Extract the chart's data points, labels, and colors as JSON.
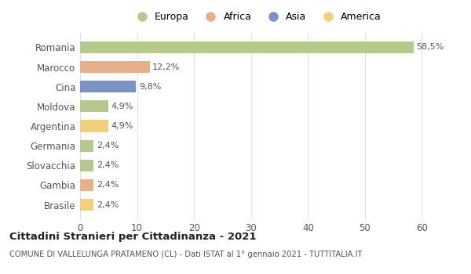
{
  "categories": [
    "Romania",
    "Marocco",
    "Cina",
    "Moldova",
    "Argentina",
    "Germania",
    "Slovacchia",
    "Gambia",
    "Brasile"
  ],
  "values": [
    58.5,
    12.2,
    9.8,
    4.9,
    4.9,
    2.4,
    2.4,
    2.4,
    2.4
  ],
  "labels": [
    "58,5%",
    "12,2%",
    "9,8%",
    "4,9%",
    "4,9%",
    "2,4%",
    "2,4%",
    "2,4%",
    "2,4%"
  ],
  "colors": [
    "#b5c98e",
    "#e8b08a",
    "#7b93c4",
    "#b5c98e",
    "#f0d07a",
    "#b5c98e",
    "#b5c98e",
    "#e8b08a",
    "#f0d07a"
  ],
  "legend_labels": [
    "Europa",
    "Africa",
    "Asia",
    "America"
  ],
  "legend_colors": [
    "#b5c98e",
    "#e8b08a",
    "#7b93c4",
    "#f0d07a"
  ],
  "xlim": [
    0,
    62
  ],
  "xticks": [
    0,
    10,
    20,
    30,
    40,
    50,
    60
  ],
  "title": "Cittadini Stranieri per Cittadinanza - 2021",
  "subtitle": "COMUNE DI VALLELUNGA PRATAMENO (CL) - Dati ISTAT al 1° gennaio 2021 - TUTTITALIA.IT",
  "bg_color": "#ffffff",
  "grid_color": "#e0e0e0"
}
